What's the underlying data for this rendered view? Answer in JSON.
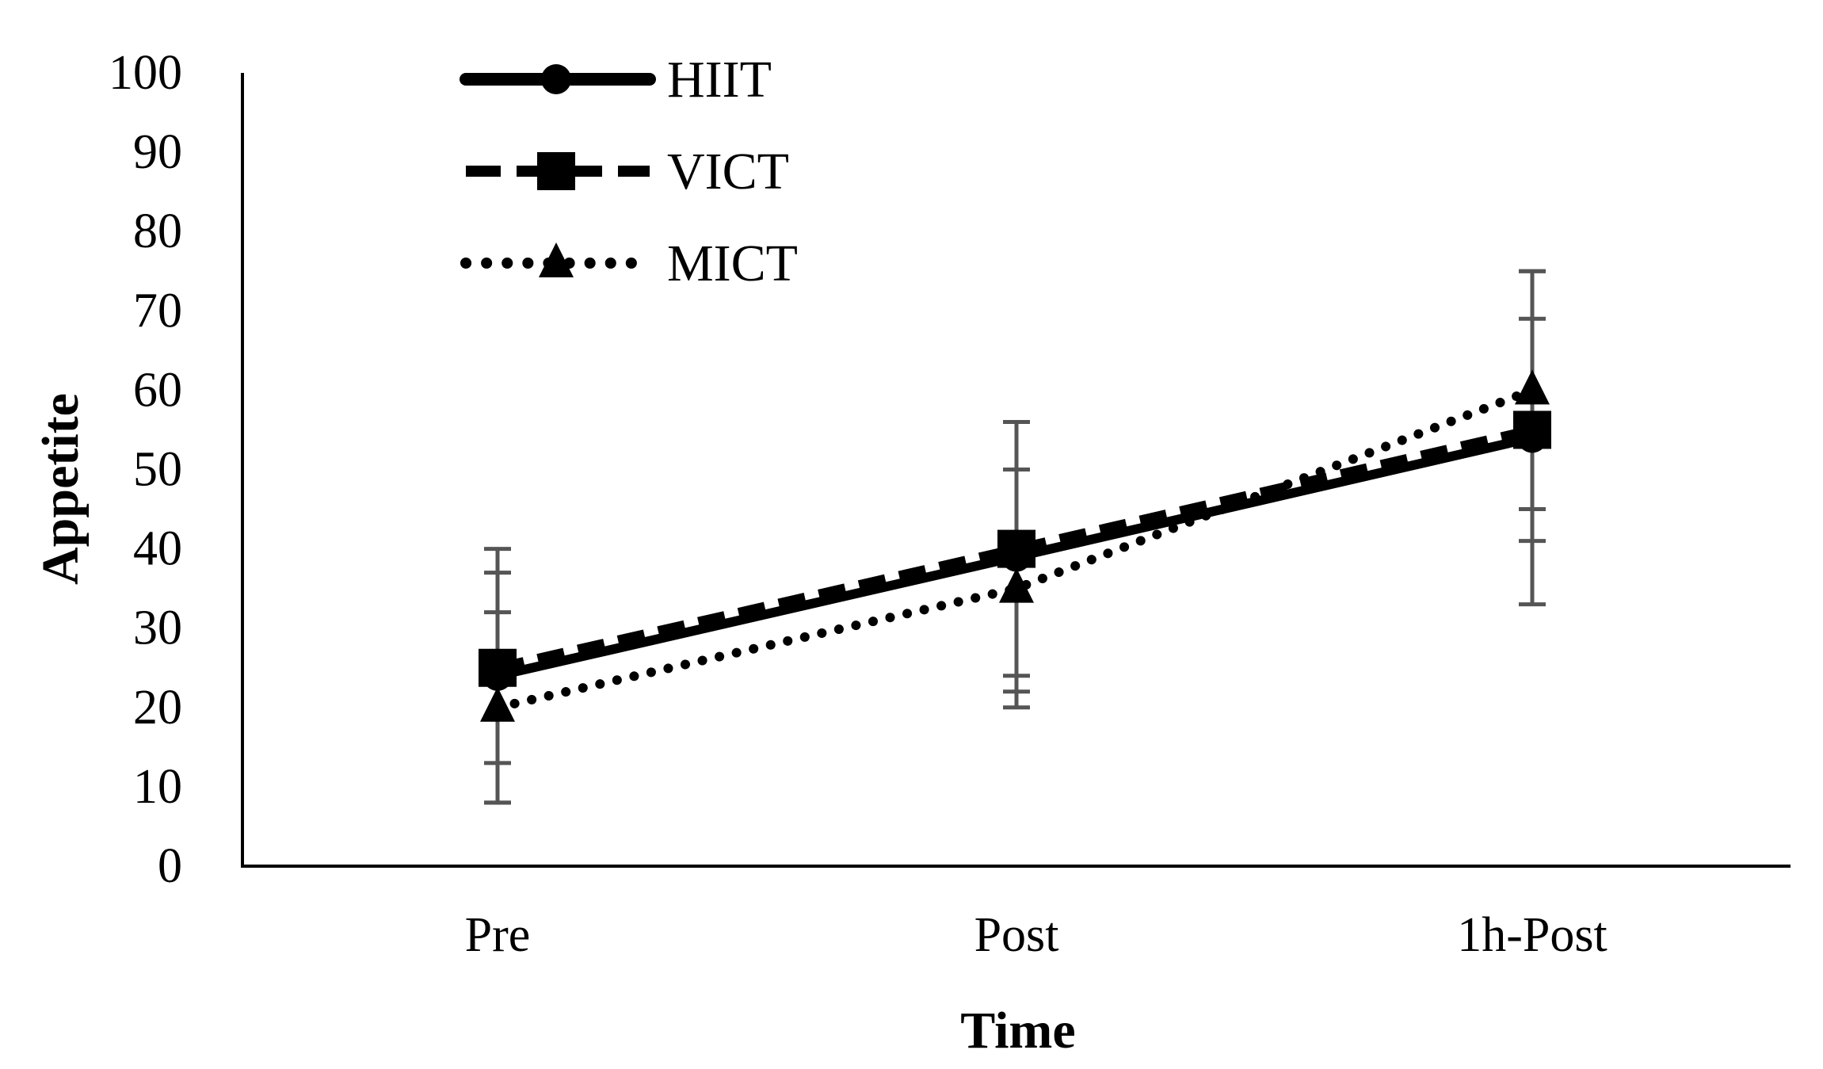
{
  "chart_data": {
    "type": "line",
    "title": "",
    "xlabel": "Time",
    "ylabel": "Appetite",
    "categories": [
      "Pre",
      "Post",
      "1h-Post"
    ],
    "ylim": [
      0,
      100
    ],
    "yticks": [
      0,
      10,
      20,
      30,
      40,
      50,
      60,
      70,
      80,
      90,
      100
    ],
    "ytick_labels": [
      "0",
      "10",
      "20",
      "30",
      "40",
      "50",
      "60",
      "70",
      "80",
      "90",
      "100"
    ],
    "grid": false,
    "legend_position": "top-left",
    "series": [
      {
        "name": "HIIT",
        "line_style": "solid",
        "marker": "circle",
        "values": [
          24,
          39,
          54
        ],
        "error": [
          16,
          17,
          21
        ]
      },
      {
        "name": "VICT",
        "line_style": "dashed",
        "marker": "square",
        "values": [
          25,
          40,
          55
        ],
        "error": [
          12,
          16,
          14
        ]
      },
      {
        "name": "MICT",
        "line_style": "dotted",
        "marker": "triangle",
        "values": [
          20,
          35,
          60
        ],
        "error": [
          12,
          15,
          15
        ]
      }
    ],
    "colors": {
      "series": "#000000",
      "error_bars": "#555555",
      "axis": "#000000"
    }
  }
}
